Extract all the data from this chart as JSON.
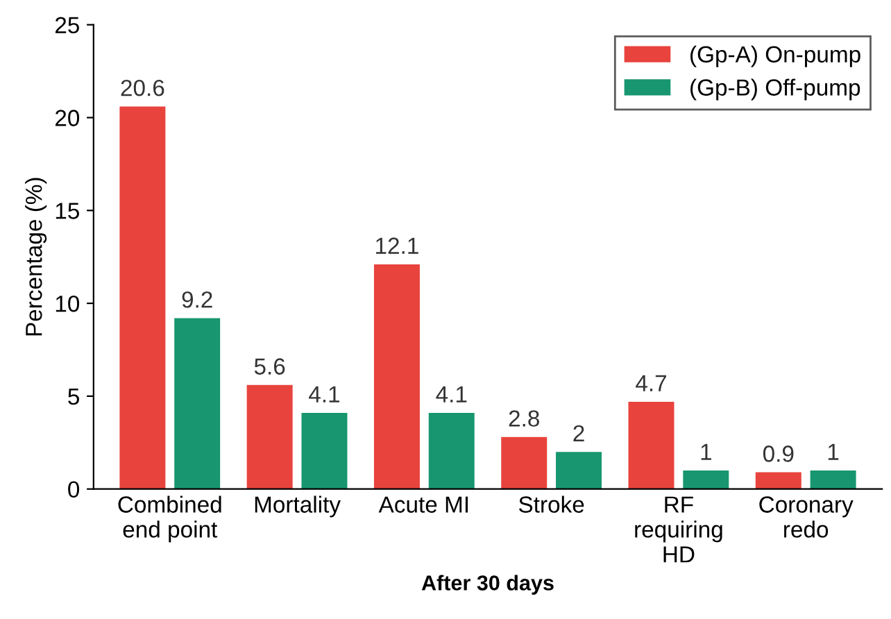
{
  "chart_data": {
    "type": "bar",
    "xlabel": "After 30 days",
    "ylabel": "Percentage (%)",
    "categories": [
      "Combined\nend point",
      "Mortality",
      "Acute MI",
      "Stroke",
      "RF\nrequiring\nHD",
      "Coronary\nredo"
    ],
    "series": [
      {
        "name": "(Gp-A) On-pump",
        "color": "#e8433d",
        "values": [
          20.6,
          5.6,
          12.1,
          2.8,
          4.7,
          0.9
        ]
      },
      {
        "name": "(Gp-B) Off-pump",
        "color": "#17966f",
        "values": [
          9.2,
          4.1,
          4.1,
          2,
          1,
          1
        ]
      }
    ],
    "ylim": [
      0,
      25
    ],
    "yticks": [
      0,
      5,
      10,
      15,
      20,
      25
    ],
    "grid": false,
    "legend": "top right",
    "data_labels": true
  }
}
